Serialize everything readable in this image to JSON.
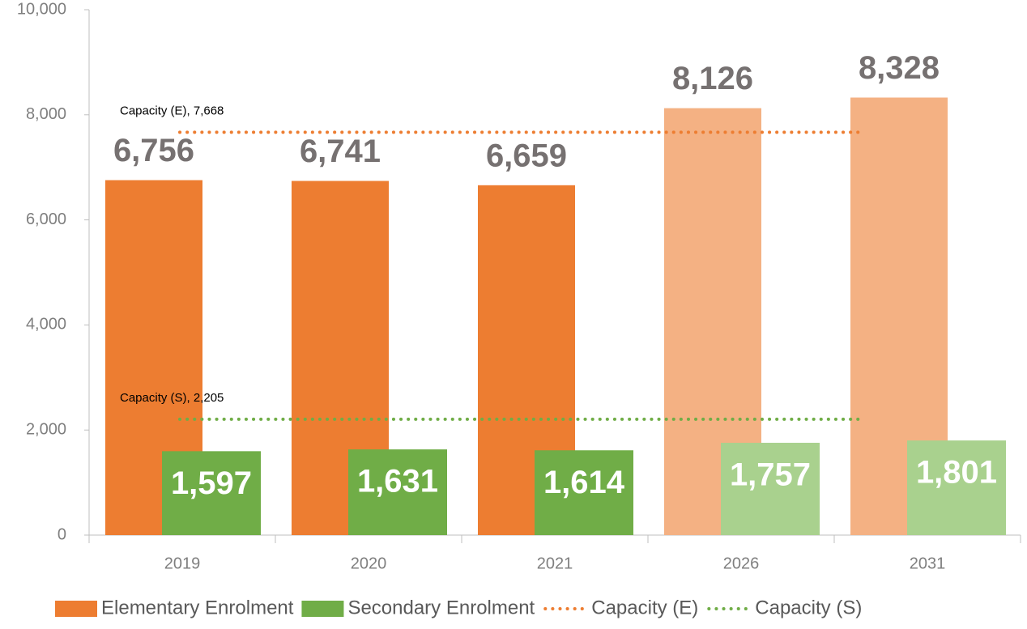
{
  "chart_data": {
    "type": "bar",
    "categories": [
      "2019",
      "2020",
      "2021",
      "2026",
      "2031"
    ],
    "series": [
      {
        "name": "Elementary Enrolment",
        "color": "#ED7D31",
        "colors": [
          "#ED7D31",
          "#ED7D31",
          "#ED7D31",
          "#F4B183",
          "#F4B183"
        ],
        "label_color": "#767171",
        "values": [
          6756,
          6741,
          6659,
          8126,
          8328
        ],
        "value_labels": [
          "6,756",
          "6,741",
          "6,659",
          "8,126",
          "8,328"
        ]
      },
      {
        "name": "Secondary Enrolment",
        "color": "#70AD47",
        "colors": [
          "#70AD47",
          "#70AD47",
          "#70AD47",
          "#A9D18E",
          "#A9D18E"
        ],
        "label_color": "#ffffff",
        "values": [
          1597,
          1631,
          1614,
          1757,
          1801
        ],
        "value_labels": [
          "1,597",
          "1,631",
          "1,614",
          "1,757",
          "1,801"
        ]
      }
    ],
    "reference_lines": [
      {
        "name": "Capacity (E)",
        "value": 7668,
        "color": "#ED7D31",
        "label": "Capacity (E), 7,668"
      },
      {
        "name": "Capacity (S)",
        "value": 2205,
        "color": "#70AD47",
        "label": "Capacity (S), 2,205"
      }
    ],
    "ylim": [
      0,
      10000
    ],
    "yticks": [
      0,
      {
        "value": 2000,
        "label": "2,000"
      },
      {
        "value": 4000,
        "label": "4,000"
      },
      {
        "value": 6000,
        "label": "6,000"
      },
      {
        "value": 8000,
        "label": "8,000"
      },
      {
        "value": 10000,
        "label": "10,000"
      }
    ],
    "grid": false,
    "legend": "bottom"
  }
}
